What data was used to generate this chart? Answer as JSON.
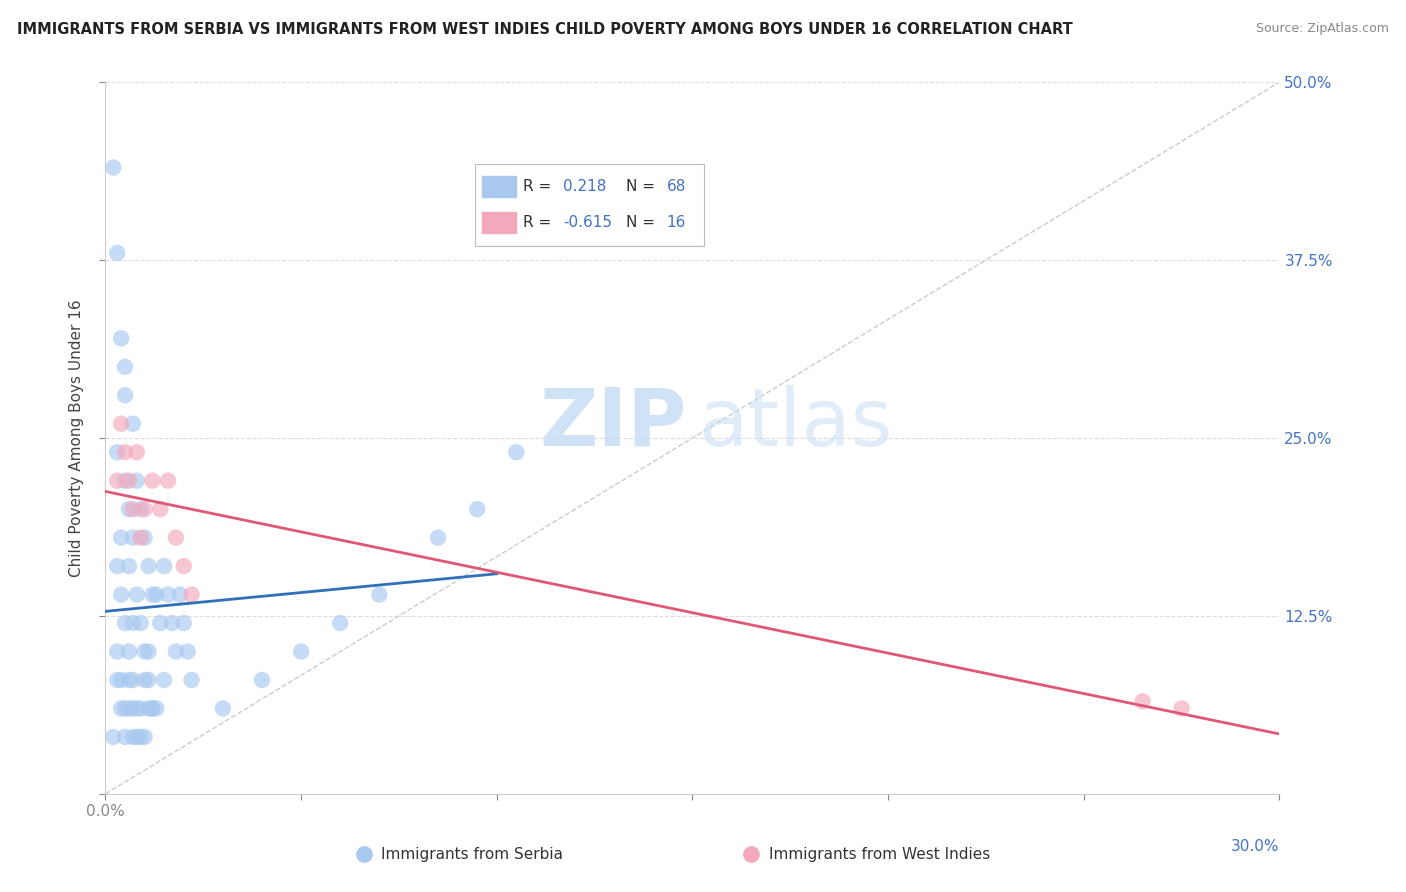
{
  "title": "IMMIGRANTS FROM SERBIA VS IMMIGRANTS FROM WEST INDIES CHILD POVERTY AMONG BOYS UNDER 16 CORRELATION CHART",
  "source": "Source: ZipAtlas.com",
  "ylabel": "Child Poverty Among Boys Under 16",
  "xlabel_serbia": "Immigrants from Serbia",
  "xlabel_westindies": "Immigrants from West Indies",
  "xlim": [
    0.0,
    0.3
  ],
  "ylim": [
    0.0,
    0.5
  ],
  "R_serbia": 0.218,
  "N_serbia": 68,
  "R_westindies": -0.615,
  "N_westindies": 16,
  "color_serbia": "#a8c8f0",
  "color_westindies": "#f4a8bc",
  "line_color_serbia": "#3070b8",
  "line_color_westindies": "#e05878",
  "serbia_x": [
    0.002,
    0.003,
    0.004,
    0.004,
    0.005,
    0.005,
    0.006,
    0.006,
    0.007,
    0.007,
    0.007,
    0.008,
    0.008,
    0.009,
    0.009,
    0.01,
    0.01,
    0.011,
    0.011,
    0.012,
    0.012,
    0.013,
    0.013,
    0.014,
    0.015,
    0.015,
    0.016,
    0.017,
    0.018,
    0.019,
    0.02,
    0.021,
    0.022,
    0.003,
    0.004,
    0.005,
    0.006,
    0.007,
    0.008,
    0.009,
    0.01,
    0.011,
    0.012,
    0.003,
    0.004,
    0.005,
    0.006,
    0.007,
    0.008,
    0.009,
    0.01,
    0.011,
    0.002,
    0.003,
    0.004,
    0.005,
    0.006,
    0.007,
    0.03,
    0.04,
    0.05,
    0.06,
    0.07,
    0.085,
    0.095,
    0.105,
    0.003,
    0.005
  ],
  "serbia_y": [
    0.44,
    0.38,
    0.18,
    0.32,
    0.3,
    0.22,
    0.2,
    0.16,
    0.26,
    0.18,
    0.12,
    0.22,
    0.14,
    0.2,
    0.12,
    0.18,
    0.1,
    0.16,
    0.08,
    0.14,
    0.06,
    0.14,
    0.06,
    0.12,
    0.16,
    0.08,
    0.14,
    0.12,
    0.1,
    0.14,
    0.12,
    0.1,
    0.08,
    0.1,
    0.08,
    0.06,
    0.08,
    0.06,
    0.04,
    0.06,
    0.04,
    0.1,
    0.06,
    0.16,
    0.14,
    0.12,
    0.1,
    0.08,
    0.06,
    0.04,
    0.08,
    0.06,
    0.04,
    0.08,
    0.06,
    0.04,
    0.06,
    0.04,
    0.06,
    0.08,
    0.1,
    0.12,
    0.14,
    0.18,
    0.2,
    0.24,
    0.24,
    0.28
  ],
  "westindies_x": [
    0.003,
    0.004,
    0.005,
    0.006,
    0.007,
    0.008,
    0.009,
    0.01,
    0.012,
    0.014,
    0.016,
    0.018,
    0.02,
    0.022,
    0.265,
    0.275
  ],
  "westindies_y": [
    0.22,
    0.26,
    0.24,
    0.22,
    0.2,
    0.24,
    0.18,
    0.2,
    0.22,
    0.2,
    0.22,
    0.18,
    0.16,
    0.14,
    0.065,
    0.06
  ],
  "diag_line_color": "#cccccc",
  "grid_color": "#dddddd",
  "axis_label_color": "#4472c4",
  "text_color": "#444444",
  "source_color": "#888888"
}
